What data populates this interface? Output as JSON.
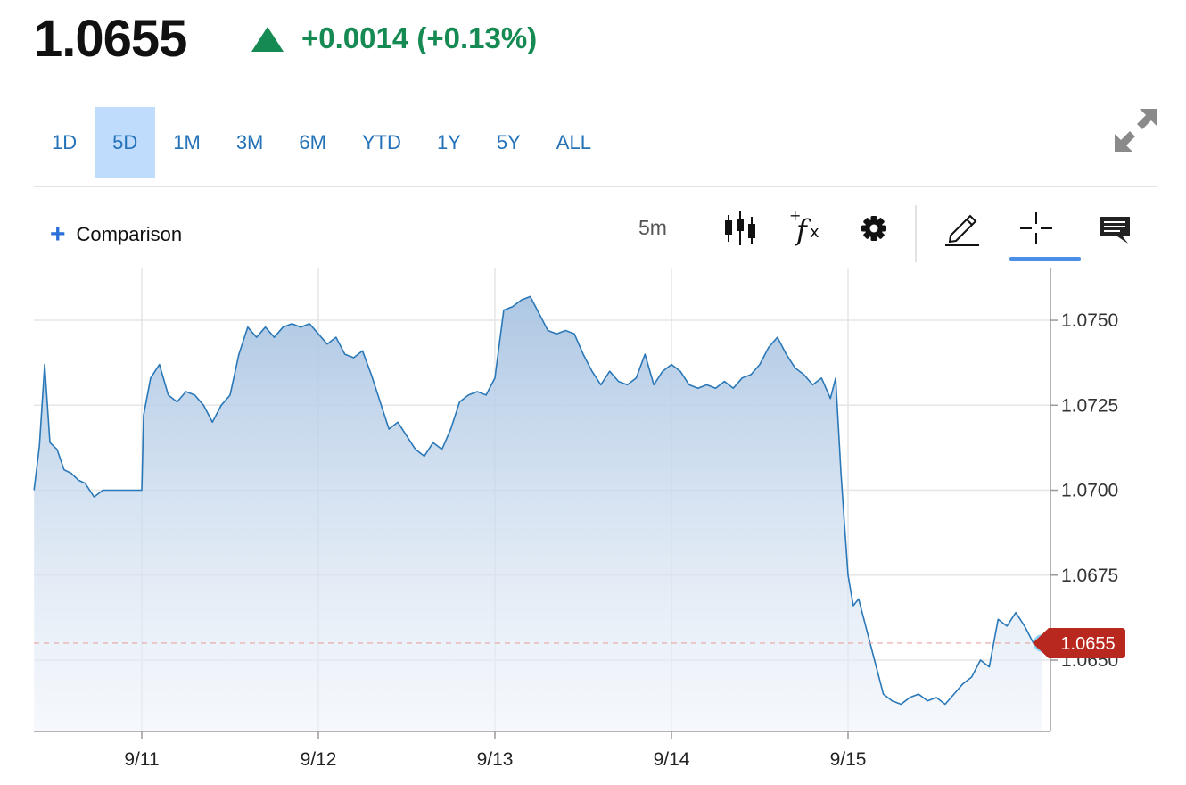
{
  "quote": {
    "price": "1.0655",
    "change": "+0.0014 (+0.13%)",
    "direction_icon": "up-triangle-icon",
    "up_color": "#168a53"
  },
  "ranges": [
    "1D",
    "5D",
    "1M",
    "3M",
    "6M",
    "YTD",
    "1Y",
    "5Y",
    "ALL"
  ],
  "active_range": "5D",
  "toolbar": {
    "comparison_label": "Comparison",
    "interval": "5m",
    "tools": [
      "candlestick-icon",
      "function-icon",
      "settings-icon",
      "draw-icon",
      "crosshair-icon",
      "comment-icon"
    ],
    "active_tool": "crosshair-icon"
  },
  "chart_data": {
    "type": "area",
    "x_ticks": [
      "9/11",
      "9/12",
      "9/13",
      "9/14",
      "9/15"
    ],
    "y_ticks": [
      "1.0750",
      "1.0725",
      "1.0700",
      "1.0675",
      "1.0650"
    ],
    "ylim": [
      1.0629,
      1.07655
    ],
    "xlim": [
      -0.61,
      5.1
    ],
    "last_price_label": "1.0655",
    "last_price": 1.0655,
    "line_color": "#2a78b8",
    "last_price_color": "#b8281e",
    "points": [
      [
        -0.61,
        1.07
      ],
      [
        -0.58,
        1.0713
      ],
      [
        -0.55,
        1.0737
      ],
      [
        -0.52,
        1.0714
      ],
      [
        -0.48,
        1.0712
      ],
      [
        -0.44,
        1.0706
      ],
      [
        -0.4,
        1.0705
      ],
      [
        -0.36,
        1.0703
      ],
      [
        -0.32,
        1.0702
      ],
      [
        -0.27,
        1.0698
      ],
      [
        -0.22,
        1.07
      ],
      [
        -0.15,
        1.07
      ],
      [
        0.0,
        1.07
      ],
      [
        0.01,
        1.0722
      ],
      [
        0.05,
        1.0733
      ],
      [
        0.1,
        1.0737
      ],
      [
        0.15,
        1.0728
      ],
      [
        0.2,
        1.0726
      ],
      [
        0.25,
        1.0729
      ],
      [
        0.3,
        1.0728
      ],
      [
        0.35,
        1.0725
      ],
      [
        0.4,
        1.072
      ],
      [
        0.45,
        1.0725
      ],
      [
        0.5,
        1.0728
      ],
      [
        0.55,
        1.074
      ],
      [
        0.6,
        1.0748
      ],
      [
        0.65,
        1.0745
      ],
      [
        0.7,
        1.0748
      ],
      [
        0.75,
        1.0745
      ],
      [
        0.8,
        1.0748
      ],
      [
        0.85,
        1.0749
      ],
      [
        0.9,
        1.0748
      ],
      [
        0.95,
        1.0749
      ],
      [
        1.0,
        1.0746
      ],
      [
        1.05,
        1.0743
      ],
      [
        1.1,
        1.0745
      ],
      [
        1.15,
        1.074
      ],
      [
        1.2,
        1.0739
      ],
      [
        1.25,
        1.0741
      ],
      [
        1.3,
        1.0734
      ],
      [
        1.35,
        1.0726
      ],
      [
        1.4,
        1.0718
      ],
      [
        1.45,
        1.072
      ],
      [
        1.5,
        1.0716
      ],
      [
        1.55,
        1.0712
      ],
      [
        1.6,
        1.071
      ],
      [
        1.65,
        1.0714
      ],
      [
        1.7,
        1.0712
      ],
      [
        1.75,
        1.0718
      ],
      [
        1.8,
        1.0726
      ],
      [
        1.85,
        1.0728
      ],
      [
        1.9,
        1.0729
      ],
      [
        1.95,
        1.0728
      ],
      [
        2.0,
        1.0733
      ],
      [
        2.05,
        1.0753
      ],
      [
        2.1,
        1.0754
      ],
      [
        2.15,
        1.0756
      ],
      [
        2.2,
        1.0757
      ],
      [
        2.25,
        1.0752
      ],
      [
        2.3,
        1.0747
      ],
      [
        2.35,
        1.0746
      ],
      [
        2.4,
        1.0747
      ],
      [
        2.45,
        1.0746
      ],
      [
        2.5,
        1.074
      ],
      [
        2.55,
        1.0735
      ],
      [
        2.6,
        1.0731
      ],
      [
        2.65,
        1.0735
      ],
      [
        2.7,
        1.0732
      ],
      [
        2.75,
        1.0731
      ],
      [
        2.8,
        1.0733
      ],
      [
        2.85,
        1.074
      ],
      [
        2.9,
        1.0731
      ],
      [
        2.95,
        1.0735
      ],
      [
        3.0,
        1.0737
      ],
      [
        3.05,
        1.0735
      ],
      [
        3.1,
        1.0731
      ],
      [
        3.15,
        1.073
      ],
      [
        3.2,
        1.0731
      ],
      [
        3.25,
        1.073
      ],
      [
        3.3,
        1.0732
      ],
      [
        3.35,
        1.073
      ],
      [
        3.4,
        1.0733
      ],
      [
        3.45,
        1.0734
      ],
      [
        3.5,
        1.0737
      ],
      [
        3.55,
        1.0742
      ],
      [
        3.6,
        1.0745
      ],
      [
        3.65,
        1.074
      ],
      [
        3.7,
        1.0736
      ],
      [
        3.75,
        1.0734
      ],
      [
        3.8,
        1.0731
      ],
      [
        3.85,
        1.0733
      ],
      [
        3.9,
        1.0727
      ],
      [
        3.93,
        1.0733
      ],
      [
        3.96,
        1.0705
      ],
      [
        3.98,
        1.069
      ],
      [
        4.0,
        1.0675
      ],
      [
        4.03,
        1.0666
      ],
      [
        4.06,
        1.0668
      ],
      [
        4.1,
        1.066
      ],
      [
        4.15,
        1.065
      ],
      [
        4.2,
        1.064
      ],
      [
        4.25,
        1.0638
      ],
      [
        4.3,
        1.0637
      ],
      [
        4.35,
        1.0639
      ],
      [
        4.4,
        1.064
      ],
      [
        4.45,
        1.0638
      ],
      [
        4.5,
        1.0639
      ],
      [
        4.55,
        1.0637
      ],
      [
        4.6,
        1.064
      ],
      [
        4.65,
        1.0643
      ],
      [
        4.7,
        1.0645
      ],
      [
        4.75,
        1.065
      ],
      [
        4.8,
        1.0648
      ],
      [
        4.85,
        1.0662
      ],
      [
        4.9,
        1.066
      ],
      [
        4.95,
        1.0664
      ],
      [
        5.0,
        1.066
      ],
      [
        5.05,
        1.0655
      ],
      [
        5.1,
        1.0655
      ]
    ]
  }
}
